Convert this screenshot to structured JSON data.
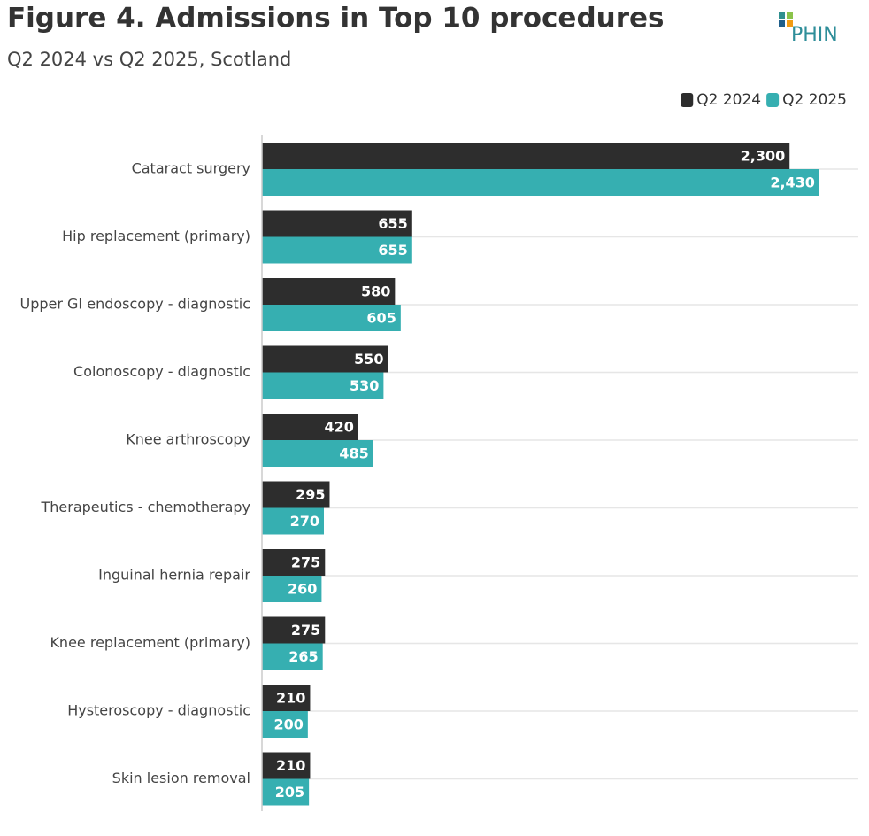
{
  "chart_data": {
    "type": "hbar",
    "title": "Figure 4. Admissions in Top 10 procedures",
    "subtitle": "Q2 2024 vs Q2 2025, Scotland",
    "logo": "PHIN",
    "categories": [
      "Cataract surgery",
      "Hip replacement (primary)",
      "Upper GI endoscopy - diagnostic",
      "Colonoscopy - diagnostic",
      "Knee arthroscopy",
      "Therapeutics - chemotherapy",
      "Inguinal hernia repair",
      "Knee replacement (primary)",
      "Hysteroscopy - diagnostic",
      "Skin lesion removal"
    ],
    "series": [
      {
        "name": "Q2 2024",
        "color": "#2d2d2d",
        "values": [
          2300,
          655,
          580,
          550,
          420,
          295,
          275,
          275,
          210,
          210
        ],
        "value_labels": [
          "2,300",
          "655",
          "580",
          "550",
          "420",
          "295",
          "275",
          "275",
          "210",
          "210"
        ]
      },
      {
        "name": "Q2 2025",
        "color": "#36afb1",
        "values": [
          2430,
          655,
          605,
          530,
          485,
          270,
          260,
          265,
          200,
          205
        ],
        "value_labels": [
          "2,430",
          "655",
          "605",
          "530",
          "485",
          "270",
          "260",
          "265",
          "200",
          "205"
        ]
      }
    ],
    "xlim": [
      0,
      2600
    ],
    "grid": true,
    "legend": "top-right"
  }
}
